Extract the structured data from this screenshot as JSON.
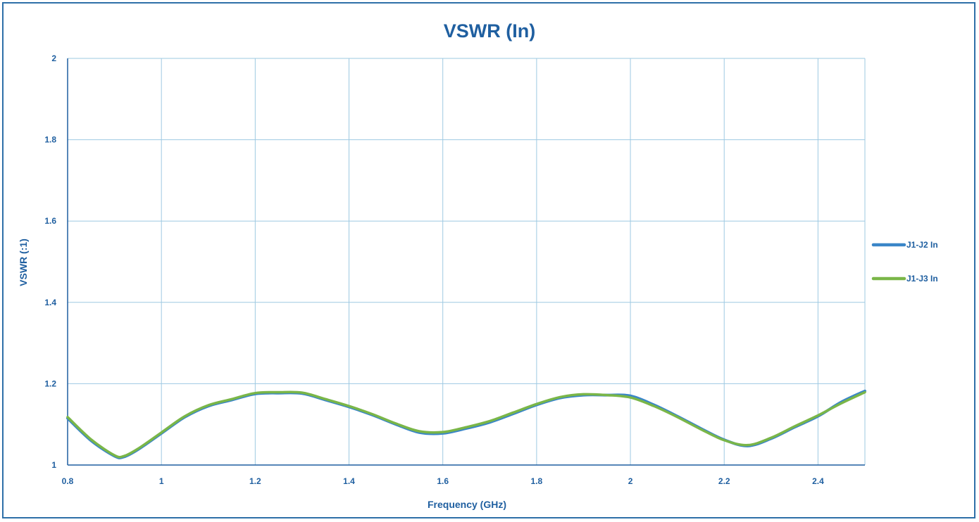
{
  "chart_data": {
    "type": "line",
    "title": "VSWR (In)",
    "xlabel": "Frequency (GHz)",
    "ylabel": "VSWR (:1)",
    "xlim": [
      0.8,
      2.5
    ],
    "ylim": [
      1,
      2
    ],
    "x_ticks": [
      "0.8",
      "1",
      "1.2",
      "1.4",
      "1.6",
      "1.8",
      "2",
      "2.2",
      "2.4"
    ],
    "y_ticks": [
      "1",
      "1.2",
      "1.4",
      "1.6",
      "1.8",
      "2"
    ],
    "grid": true,
    "legend_position": "right",
    "colors": {
      "axis": "#1f5fa0",
      "grid": "#9ec9e2",
      "frame": "#2e6fa8"
    },
    "series": [
      {
        "name": "J1-J2 In",
        "color": "#3a86c8",
        "x": [
          0.8,
          0.85,
          0.9,
          0.92,
          0.95,
          1.0,
          1.05,
          1.1,
          1.15,
          1.2,
          1.25,
          1.3,
          1.35,
          1.4,
          1.45,
          1.5,
          1.55,
          1.6,
          1.65,
          1.7,
          1.75,
          1.8,
          1.85,
          1.9,
          1.95,
          2.0,
          2.05,
          2.1,
          2.15,
          2.2,
          2.25,
          2.3,
          2.35,
          2.4,
          2.45,
          2.5
        ],
        "y": [
          1.115,
          1.06,
          1.022,
          1.02,
          1.038,
          1.078,
          1.118,
          1.145,
          1.16,
          1.175,
          1.177,
          1.176,
          1.16,
          1.143,
          1.123,
          1.1,
          1.08,
          1.078,
          1.09,
          1.105,
          1.126,
          1.148,
          1.165,
          1.172,
          1.172,
          1.17,
          1.148,
          1.12,
          1.09,
          1.062,
          1.047,
          1.065,
          1.093,
          1.12,
          1.155,
          1.182
        ]
      },
      {
        "name": "J1-J3 In",
        "color": "#7ab648",
        "x": [
          0.8,
          0.85,
          0.9,
          0.92,
          0.95,
          1.0,
          1.05,
          1.1,
          1.15,
          1.2,
          1.25,
          1.3,
          1.35,
          1.4,
          1.45,
          1.5,
          1.55,
          1.6,
          1.65,
          1.7,
          1.75,
          1.8,
          1.85,
          1.9,
          1.95,
          2.0,
          2.05,
          2.1,
          2.15,
          2.2,
          2.25,
          2.3,
          2.35,
          2.4,
          2.45,
          2.5
        ],
        "y": [
          1.118,
          1.063,
          1.024,
          1.022,
          1.04,
          1.08,
          1.12,
          1.147,
          1.162,
          1.177,
          1.179,
          1.178,
          1.162,
          1.145,
          1.125,
          1.102,
          1.083,
          1.081,
          1.093,
          1.108,
          1.129,
          1.15,
          1.167,
          1.174,
          1.172,
          1.166,
          1.145,
          1.118,
          1.088,
          1.061,
          1.049,
          1.067,
          1.095,
          1.122,
          1.152,
          1.179
        ]
      }
    ]
  }
}
